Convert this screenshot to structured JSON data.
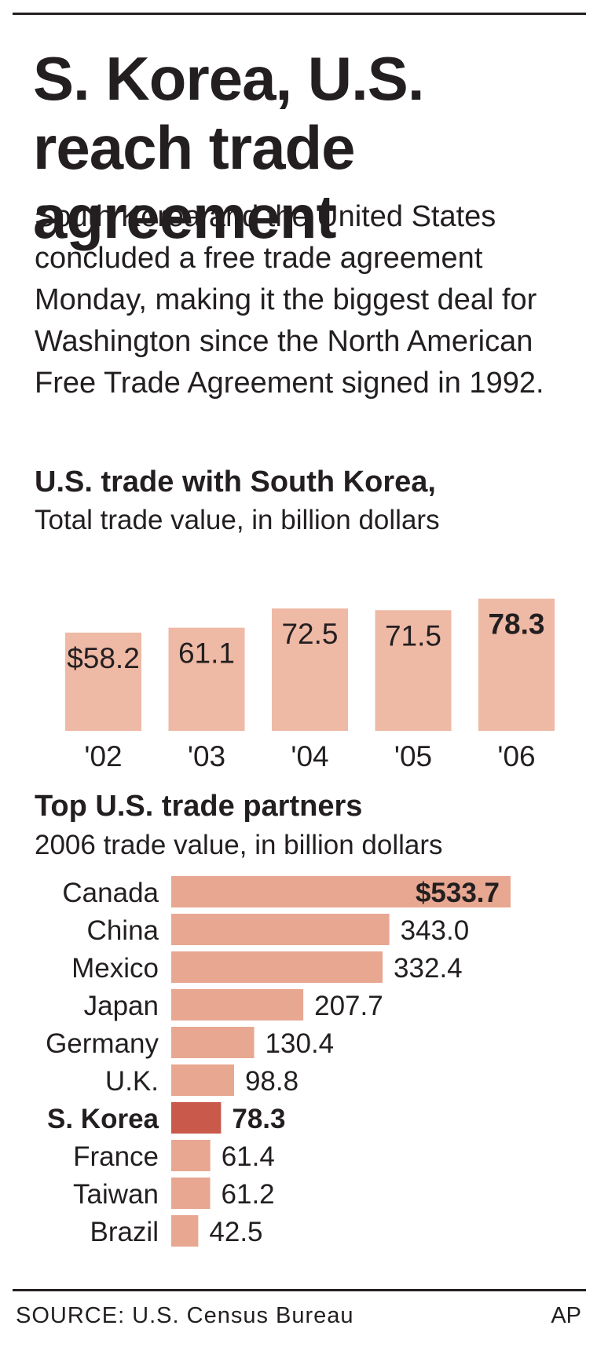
{
  "headline": "S. Korea, U.S. reach trade agreement",
  "intro": "South Korea and the United States concluded a free trade agreement Monday, making it the biggest deal for Washington since the North American Free Trade Agreement signed in 1992.",
  "source": "SOURCE: U.S. Census Bureau",
  "credit": "AP",
  "colors": {
    "bar": "#eeb9a5",
    "bar_light": "#e8a791",
    "highlight": "#c95a4b",
    "text": "#231f20"
  },
  "chart_data": [
    {
      "type": "bar",
      "title": "U.S. trade with South Korea,",
      "subtitle": "Total trade value, in billion dollars",
      "categories": [
        "'02",
        "'03",
        "'04",
        "'05",
        "'06"
      ],
      "values": [
        58.2,
        61.1,
        72.5,
        71.5,
        78.3
      ],
      "value_labels": [
        "$58.2",
        "61.1",
        "72.5",
        "71.5",
        "78.3"
      ],
      "orientation": "vertical",
      "xlabel": "",
      "ylabel": ""
    },
    {
      "type": "bar",
      "title": "Top U.S. trade partners",
      "subtitle": "2006 trade value, in billion dollars",
      "orientation": "horizontal",
      "categories": [
        "Canada",
        "China",
        "Mexico",
        "Japan",
        "Germany",
        "U.K.",
        "S. Korea",
        "France",
        "Taiwan",
        "Brazil"
      ],
      "values": [
        533.7,
        343.0,
        332.4,
        207.7,
        130.4,
        98.8,
        78.3,
        61.4,
        61.2,
        42.5
      ],
      "value_labels": [
        "$533.7",
        "343.0",
        "332.4",
        "207.7",
        "130.4",
        "98.8",
        "78.3",
        "61.4",
        "61.2",
        "42.5"
      ],
      "highlight": "S. Korea",
      "xlabel": "",
      "ylabel": ""
    }
  ]
}
